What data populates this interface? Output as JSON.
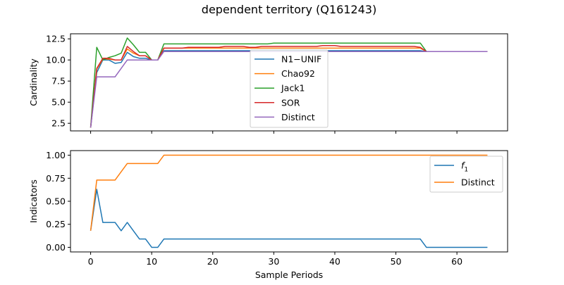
{
  "chart_data": [
    {
      "type": "line",
      "title": "dependent territory (Q161243)",
      "xlabel": "",
      "ylabel": "Cardinality",
      "xlim": [
        -3.3,
        68.3
      ],
      "ylim": [
        1.6,
        13.1
      ],
      "xticks": [
        0,
        10,
        20,
        30,
        40,
        50,
        60
      ],
      "show_xtick_labels": false,
      "yticks": [
        2.5,
        5.0,
        7.5,
        10.0,
        12.5
      ],
      "ytick_labels": [
        "2.5",
        "5.0",
        "7.5",
        "10.0",
        "12.5"
      ],
      "legend_position": "center",
      "x": [
        0,
        1,
        2,
        3,
        4,
        5,
        6,
        7,
        8,
        9,
        10,
        11,
        12,
        13,
        14,
        15,
        16,
        17,
        18,
        19,
        20,
        21,
        22,
        23,
        24,
        25,
        26,
        27,
        28,
        29,
        30,
        31,
        32,
        33,
        34,
        35,
        36,
        37,
        38,
        39,
        40,
        41,
        42,
        43,
        44,
        45,
        46,
        47,
        48,
        49,
        50,
        51,
        52,
        53,
        54,
        55,
        56,
        57,
        58,
        59,
        60,
        61,
        62,
        63,
        64,
        65
      ],
      "series": [
        {
          "name": "N1−UNIF",
          "color": "#1f77b4",
          "values": [
            2.0,
            8.5,
            10.0,
            10.0,
            9.6,
            9.7,
            10.9,
            10.4,
            10.2,
            10.2,
            10.0,
            10.0,
            11.1,
            11.1,
            11.1,
            11.1,
            11.1,
            11.1,
            11.1,
            11.1,
            11.1,
            11.1,
            11.1,
            11.1,
            11.1,
            11.1,
            11.1,
            11.1,
            11.1,
            11.1,
            11.1,
            11.1,
            11.1,
            11.1,
            11.1,
            11.1,
            11.1,
            11.1,
            11.1,
            11.1,
            11.1,
            11.1,
            11.1,
            11.1,
            11.1,
            11.1,
            11.1,
            11.1,
            11.1,
            11.1,
            11.1,
            11.1,
            11.1,
            11.1,
            11.1,
            11.0,
            11.0,
            11.0,
            11.0,
            11.0,
            11.0,
            11.0,
            11.0,
            11.0,
            11.0,
            11.0
          ]
        },
        {
          "name": "Chao92",
          "color": "#ff7f0e",
          "values": [
            2.0,
            8.9,
            10.1,
            10.1,
            10.0,
            10.0,
            11.3,
            10.8,
            10.5,
            10.5,
            10.0,
            10.0,
            11.4,
            11.4,
            11.4,
            11.4,
            11.4,
            11.4,
            11.4,
            11.4,
            11.4,
            11.4,
            11.4,
            11.4,
            11.4,
            11.4,
            11.4,
            11.4,
            11.4,
            11.4,
            11.4,
            11.4,
            11.4,
            11.4,
            11.4,
            11.4,
            11.4,
            11.4,
            11.4,
            11.4,
            11.4,
            11.4,
            11.4,
            11.4,
            11.4,
            11.4,
            11.4,
            11.4,
            11.4,
            11.4,
            11.4,
            11.4,
            11.4,
            11.4,
            11.4,
            11.0,
            11.0,
            11.0,
            11.0,
            11.0,
            11.0,
            11.0,
            11.0,
            11.0,
            11.0,
            11.0
          ]
        },
        {
          "name": "Jack1",
          "color": "#2ca02c",
          "values": [
            2.0,
            11.5,
            10.0,
            10.3,
            10.5,
            10.8,
            12.6,
            11.8,
            10.9,
            10.9,
            10.0,
            10.0,
            11.9,
            11.9,
            11.9,
            11.9,
            11.9,
            11.9,
            11.9,
            11.9,
            11.9,
            11.9,
            11.9,
            11.9,
            11.9,
            11.9,
            11.9,
            11.9,
            11.9,
            11.9,
            12.0,
            12.0,
            12.0,
            12.0,
            12.0,
            12.0,
            12.0,
            12.0,
            12.0,
            12.0,
            12.0,
            12.0,
            12.0,
            12.0,
            12.0,
            12.0,
            12.0,
            12.0,
            12.0,
            12.0,
            12.0,
            12.0,
            12.0,
            12.0,
            12.0,
            11.0,
            11.0,
            11.0,
            11.0,
            11.0,
            11.0,
            11.0,
            11.0,
            11.0,
            11.0,
            11.0
          ]
        },
        {
          "name": "SOR",
          "color": "#d62728",
          "values": [
            2.0,
            9.0,
            10.2,
            10.2,
            10.0,
            10.0,
            11.6,
            11.0,
            10.5,
            10.5,
            10.0,
            10.0,
            11.4,
            11.4,
            11.4,
            11.4,
            11.5,
            11.5,
            11.5,
            11.5,
            11.5,
            11.5,
            11.6,
            11.6,
            11.6,
            11.6,
            11.5,
            11.5,
            11.6,
            11.6,
            11.6,
            11.6,
            11.6,
            11.6,
            11.6,
            11.6,
            11.6,
            11.6,
            11.7,
            11.7,
            11.7,
            11.6,
            11.6,
            11.6,
            11.6,
            11.6,
            11.6,
            11.6,
            11.6,
            11.6,
            11.6,
            11.6,
            11.6,
            11.6,
            11.5,
            11.0,
            11.0,
            11.0,
            11.0,
            11.0,
            11.0,
            11.0,
            11.0,
            11.0,
            11.0,
            11.0
          ]
        },
        {
          "name": "Distinct",
          "color": "#9467bd",
          "values": [
            2.0,
            8.0,
            8.0,
            8.0,
            8.0,
            9.0,
            10.0,
            10.0,
            10.0,
            10.0,
            10.0,
            10.0,
            11.0,
            11.0,
            11.0,
            11.0,
            11.0,
            11.0,
            11.0,
            11.0,
            11.0,
            11.0,
            11.0,
            11.0,
            11.0,
            11.0,
            11.0,
            11.0,
            11.0,
            11.0,
            11.0,
            11.0,
            11.0,
            11.0,
            11.0,
            11.0,
            11.0,
            11.0,
            11.0,
            11.0,
            11.0,
            11.0,
            11.0,
            11.0,
            11.0,
            11.0,
            11.0,
            11.0,
            11.0,
            11.0,
            11.0,
            11.0,
            11.0,
            11.0,
            11.0,
            11.0,
            11.0,
            11.0,
            11.0,
            11.0,
            11.0,
            11.0,
            11.0,
            11.0,
            11.0,
            11.0
          ]
        }
      ]
    },
    {
      "type": "line",
      "title": "",
      "xlabel": "Sample Periods",
      "ylabel": "Indicators",
      "xlim": [
        -3.3,
        68.3
      ],
      "ylim": [
        -0.05,
        1.05
      ],
      "xticks": [
        0,
        10,
        20,
        30,
        40,
        50,
        60
      ],
      "xtick_labels": [
        "0",
        "10",
        "20",
        "30",
        "40",
        "50",
        "60"
      ],
      "yticks": [
        0.0,
        0.25,
        0.5,
        0.75,
        1.0
      ],
      "ytick_labels": [
        "0.00",
        "0.25",
        "0.50",
        "0.75",
        "1.00"
      ],
      "legend_position": "upper right",
      "x": [
        0,
        1,
        2,
        3,
        4,
        5,
        6,
        7,
        8,
        9,
        10,
        11,
        12,
        13,
        14,
        15,
        16,
        17,
        18,
        19,
        20,
        21,
        22,
        23,
        24,
        25,
        26,
        27,
        28,
        29,
        30,
        31,
        32,
        33,
        34,
        35,
        36,
        37,
        38,
        39,
        40,
        41,
        42,
        43,
        44,
        45,
        46,
        47,
        48,
        49,
        50,
        51,
        52,
        53,
        54,
        55,
        56,
        57,
        58,
        59,
        60,
        61,
        62,
        63,
        64,
        65
      ],
      "series": [
        {
          "name": "f1",
          "label_main": "f",
          "label_sub": "1",
          "color": "#1f77b4",
          "values": [
            0.18,
            0.63,
            0.27,
            0.27,
            0.27,
            0.18,
            0.27,
            0.18,
            0.09,
            0.09,
            0.0,
            0.0,
            0.09,
            0.09,
            0.09,
            0.09,
            0.09,
            0.09,
            0.09,
            0.09,
            0.09,
            0.09,
            0.09,
            0.09,
            0.09,
            0.09,
            0.09,
            0.09,
            0.09,
            0.09,
            0.09,
            0.09,
            0.09,
            0.09,
            0.09,
            0.09,
            0.09,
            0.09,
            0.09,
            0.09,
            0.09,
            0.09,
            0.09,
            0.09,
            0.09,
            0.09,
            0.09,
            0.09,
            0.09,
            0.09,
            0.09,
            0.09,
            0.09,
            0.09,
            0.09,
            0.0,
            0.0,
            0.0,
            0.0,
            0.0,
            0.0,
            0.0,
            0.0,
            0.0,
            0.0,
            0.0
          ]
        },
        {
          "name": "Distinct",
          "color": "#ff7f0e",
          "values": [
            0.18,
            0.73,
            0.73,
            0.73,
            0.73,
            0.82,
            0.91,
            0.91,
            0.91,
            0.91,
            0.91,
            0.91,
            1.0,
            1.0,
            1.0,
            1.0,
            1.0,
            1.0,
            1.0,
            1.0,
            1.0,
            1.0,
            1.0,
            1.0,
            1.0,
            1.0,
            1.0,
            1.0,
            1.0,
            1.0,
            1.0,
            1.0,
            1.0,
            1.0,
            1.0,
            1.0,
            1.0,
            1.0,
            1.0,
            1.0,
            1.0,
            1.0,
            1.0,
            1.0,
            1.0,
            1.0,
            1.0,
            1.0,
            1.0,
            1.0,
            1.0,
            1.0,
            1.0,
            1.0,
            1.0,
            1.0,
            1.0,
            1.0,
            1.0,
            1.0,
            1.0,
            1.0,
            1.0,
            1.0,
            1.0,
            1.0
          ]
        }
      ]
    }
  ]
}
